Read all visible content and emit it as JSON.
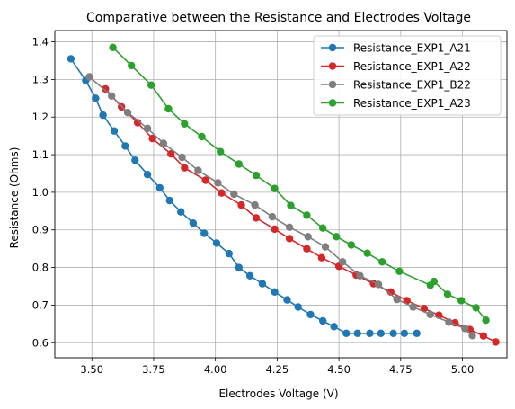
{
  "chart_data": {
    "type": "line",
    "title": "Comparative between the Resistance and Electrodes Voltage",
    "xlabel": "Electrodes Voltage (V)",
    "ylabel": "Resistance (Ohms)",
    "xlim": [
      3.35,
      5.18
    ],
    "ylim": [
      0.56,
      1.43
    ],
    "xticks": [
      3.5,
      3.75,
      4.0,
      4.25,
      4.5,
      4.75,
      5.0
    ],
    "xtick_labels": [
      "3.50",
      "3.75",
      "4.00",
      "4.25",
      "4.50",
      "4.75",
      "5.00"
    ],
    "yticks": [
      0.6,
      0.7,
      0.8,
      0.9,
      1.0,
      1.1,
      1.2,
      1.3,
      1.4
    ],
    "ytick_labels": [
      "0.6",
      "0.7",
      "0.8",
      "0.9",
      "1.0",
      "1.1",
      "1.2",
      "1.3",
      "1.4"
    ],
    "grid": true,
    "legend_position": "top-right",
    "series": [
      {
        "name": "Resistance_EXP1_A21",
        "color": "#1f77b4",
        "x": [
          3.415,
          3.475,
          3.515,
          3.545,
          3.59,
          3.635,
          3.675,
          3.725,
          3.775,
          3.815,
          3.86,
          3.91,
          3.955,
          4.005,
          4.055,
          4.095,
          4.14,
          4.19,
          4.24,
          4.29,
          4.335,
          4.385,
          4.435,
          4.48,
          4.53,
          4.575,
          4.625,
          4.67,
          4.72,
          4.765,
          4.815
        ],
        "y": [
          1.355,
          1.297,
          1.25,
          1.205,
          1.163,
          1.123,
          1.085,
          1.047,
          1.012,
          0.978,
          0.948,
          0.918,
          0.891,
          0.865,
          0.837,
          0.8,
          0.778,
          0.757,
          0.735,
          0.714,
          0.695,
          0.675,
          0.658,
          0.643,
          0.625,
          0.625,
          0.625,
          0.625,
          0.625,
          0.625,
          0.625
        ]
      },
      {
        "name": "Resistance_EXP1_A22",
        "color": "#d62728",
        "x": [
          3.555,
          3.62,
          3.685,
          3.745,
          3.82,
          3.875,
          3.96,
          4.025,
          4.105,
          4.165,
          4.24,
          4.3,
          4.37,
          4.43,
          4.5,
          4.57,
          4.64,
          4.71,
          4.775,
          4.845,
          4.905,
          4.97,
          5.03,
          5.085,
          5.135
        ],
        "y": [
          1.275,
          1.227,
          1.185,
          1.143,
          1.102,
          1.065,
          1.032,
          0.998,
          0.966,
          0.932,
          0.902,
          0.877,
          0.85,
          0.826,
          0.803,
          0.78,
          0.757,
          0.735,
          0.712,
          0.691,
          0.673,
          0.653,
          0.635,
          0.618,
          0.602
        ]
      },
      {
        "name": "Resistance_EXP1_B22",
        "color": "#7f7f7f",
        "x": [
          3.49,
          3.58,
          3.645,
          3.725,
          3.79,
          3.865,
          3.93,
          4.01,
          4.075,
          4.16,
          4.23,
          4.3,
          4.375,
          4.445,
          4.515,
          4.585,
          4.66,
          4.735,
          4.8,
          4.87,
          4.945,
          5.01,
          5.04
        ],
        "y": [
          1.307,
          1.256,
          1.212,
          1.17,
          1.13,
          1.093,
          1.058,
          1.025,
          0.995,
          0.966,
          0.935,
          0.907,
          0.882,
          0.855,
          0.815,
          0.778,
          0.755,
          0.715,
          0.695,
          0.675,
          0.655,
          0.638,
          0.619
        ]
      },
      {
        "name": "Resistance_EXP1_A23",
        "color": "#2ca02c",
        "x": [
          3.585,
          3.66,
          3.74,
          3.81,
          3.875,
          3.945,
          4.02,
          4.095,
          4.165,
          4.24,
          4.305,
          4.37,
          4.435,
          4.49,
          4.55,
          4.615,
          4.675,
          4.745,
          4.87,
          4.885,
          4.94,
          4.995,
          5.055,
          5.095
        ],
        "y": [
          1.385,
          1.337,
          1.285,
          1.222,
          1.182,
          1.148,
          1.108,
          1.075,
          1.045,
          1.01,
          0.965,
          0.939,
          0.905,
          0.882,
          0.86,
          0.838,
          0.815,
          0.79,
          0.753,
          0.763,
          0.729,
          0.712,
          0.693,
          0.66
        ]
      }
    ]
  }
}
